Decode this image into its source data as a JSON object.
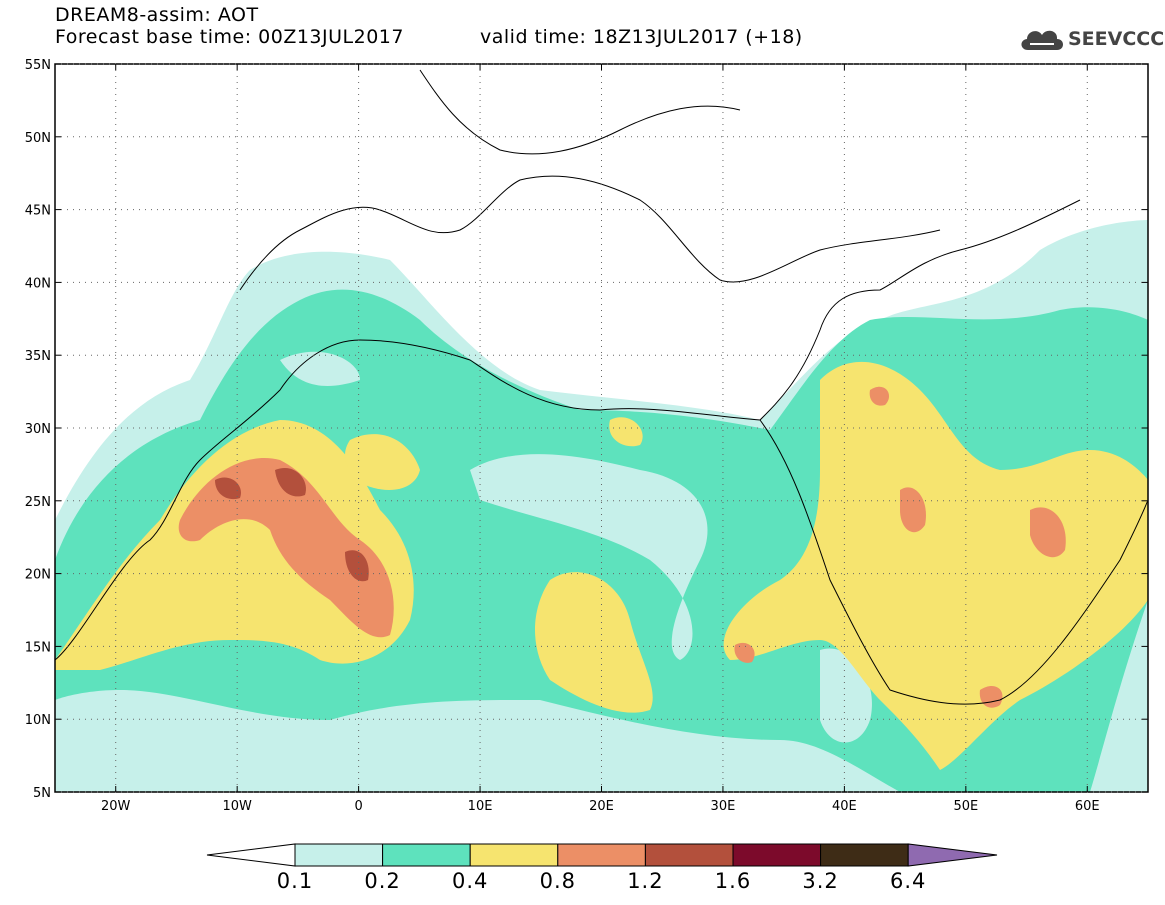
{
  "header": {
    "title_line1": "DREAM8-assim: AOT",
    "title_line2": "Forecast base time: 00Z13JUL2017",
    "valid_time": "valid time: 18Z13JUL2017 (+18)",
    "logo_text": "SEEVCCC",
    "logo_icon": "cloud-icon"
  },
  "map": {
    "field": "Aerosol Optical Thickness",
    "lon_range": [
      -25,
      65
    ],
    "lat_range": [
      5,
      55
    ],
    "lon_ticks": [
      {
        "value": -20,
        "label": "20W"
      },
      {
        "value": -10,
        "label": "10W"
      },
      {
        "value": 0,
        "label": "0"
      },
      {
        "value": 10,
        "label": "10E"
      },
      {
        "value": 20,
        "label": "20E"
      },
      {
        "value": 30,
        "label": "30E"
      },
      {
        "value": 40,
        "label": "40E"
      },
      {
        "value": 50,
        "label": "50E"
      },
      {
        "value": 60,
        "label": "60E"
      }
    ],
    "lat_ticks": [
      {
        "value": 55,
        "label": "55N"
      },
      {
        "value": 50,
        "label": "50N"
      },
      {
        "value": 45,
        "label": "45N"
      },
      {
        "value": 40,
        "label": "40N"
      },
      {
        "value": 35,
        "label": "35N"
      },
      {
        "value": 30,
        "label": "30N"
      },
      {
        "value": 25,
        "label": "25N"
      },
      {
        "value": 20,
        "label": "20N"
      },
      {
        "value": 15,
        "label": "15N"
      },
      {
        "value": 10,
        "label": "10N"
      },
      {
        "value": 5,
        "label": "5N"
      }
    ],
    "grid": true
  },
  "colorbar": {
    "bins": [
      {
        "color": "#c6f0ea",
        "from": 0.1,
        "to": 0.2
      },
      {
        "color": "#5ee2bd",
        "from": 0.2,
        "to": 0.4
      },
      {
        "color": "#f6e46f",
        "from": 0.4,
        "to": 0.8
      },
      {
        "color": "#ec8f66",
        "from": 0.8,
        "to": 1.2
      },
      {
        "color": "#b3503c",
        "from": 1.2,
        "to": 1.6
      },
      {
        "color": "#7c0a2b",
        "from": 1.6,
        "to": 3.2
      },
      {
        "color": "#3e2c16",
        "from": 3.2,
        "to": 6.4
      }
    ],
    "under_color": "#ffffff",
    "over_color": "#8f6ab0",
    "labels": [
      "0.1",
      "0.2",
      "0.4",
      "0.8",
      "1.2",
      "1.6",
      "3.2",
      "6.4"
    ]
  }
}
